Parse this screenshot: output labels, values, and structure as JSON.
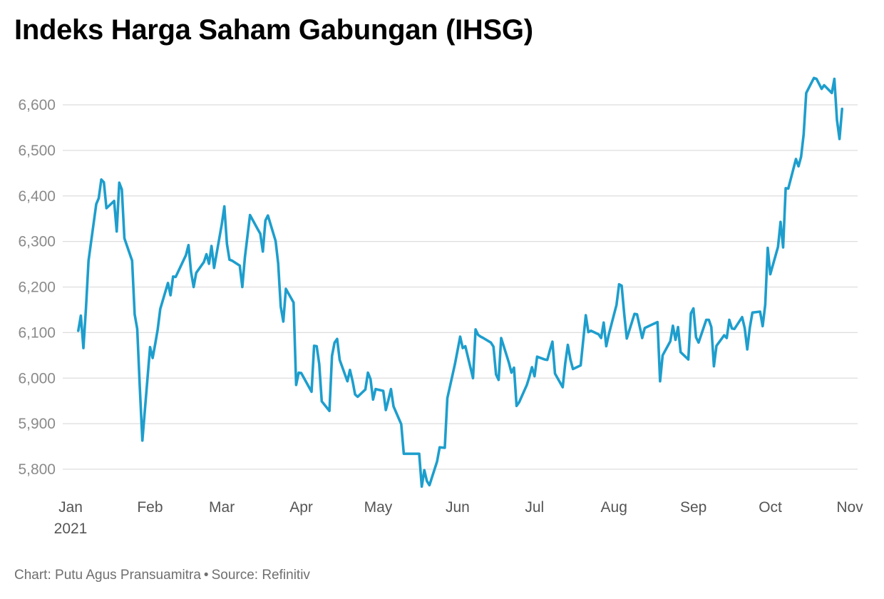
{
  "title": "Indeks Harga Saham Gabungan (IHSG)",
  "footer": {
    "chart_by": "Chart: Putu Agus Pransuamitra",
    "separator": "•",
    "source": "Source: Refinitiv"
  },
  "colors": {
    "line": "#1d9ecd",
    "grid": "#dddddd",
    "tick_text": "#8a8a8a",
    "axis_text": "#555555"
  },
  "chart_data": {
    "type": "line",
    "title": "Indeks Harga Saham Gabungan (IHSG)",
    "xlabel": "",
    "ylabel": "",
    "grid": true,
    "legend": "none",
    "ylim": [
      5750,
      6670
    ],
    "xlim": [
      "2021-01-01",
      "2021-11-01"
    ],
    "y_ticks": [
      5800,
      5900,
      6000,
      6100,
      6200,
      6300,
      6400,
      6500,
      6600
    ],
    "y_tick_labels": [
      "5,800",
      "5,900",
      "6,000",
      "6,100",
      "6,200",
      "6,300",
      "6,400",
      "6,500",
      "6,600"
    ],
    "x_ticks": [
      {
        "date": "2021-01-01",
        "label": "Jan",
        "sublabel": "2021"
      },
      {
        "date": "2021-02-01",
        "label": "Feb"
      },
      {
        "date": "2021-03-01",
        "label": "Mar"
      },
      {
        "date": "2021-04-01",
        "label": "Apr"
      },
      {
        "date": "2021-05-01",
        "label": "May"
      },
      {
        "date": "2021-06-01",
        "label": "Jun"
      },
      {
        "date": "2021-07-01",
        "label": "Jul"
      },
      {
        "date": "2021-08-01",
        "label": "Aug"
      },
      {
        "date": "2021-09-01",
        "label": "Sep"
      },
      {
        "date": "2021-10-01",
        "label": "Oct"
      },
      {
        "date": "2021-11-01",
        "label": "Nov"
      }
    ],
    "series": [
      {
        "x": [
          "2021-01-04",
          "2021-01-05",
          "2021-01-06",
          "2021-01-07",
          "2021-01-08",
          "2021-01-11",
          "2021-01-12",
          "2021-01-13",
          "2021-01-14",
          "2021-01-15",
          "2021-01-18",
          "2021-01-19",
          "2021-01-20",
          "2021-01-21",
          "2021-01-22",
          "2021-01-25",
          "2021-01-26",
          "2021-01-27",
          "2021-01-28",
          "2021-01-29",
          "2021-02-01",
          "2021-02-02",
          "2021-02-03",
          "2021-02-04",
          "2021-02-05",
          "2021-02-08",
          "2021-02-09",
          "2021-02-10",
          "2021-02-11",
          "2021-02-15",
          "2021-02-16",
          "2021-02-17",
          "2021-02-18",
          "2021-02-19",
          "2021-02-22",
          "2021-02-23",
          "2021-02-24",
          "2021-02-25",
          "2021-02-26",
          "2021-03-01",
          "2021-03-02",
          "2021-03-03",
          "2021-03-04",
          "2021-03-05",
          "2021-03-08",
          "2021-03-09",
          "2021-03-10",
          "2021-03-12",
          "2021-03-15",
          "2021-03-16",
          "2021-03-17",
          "2021-03-18",
          "2021-03-19",
          "2021-03-22",
          "2021-03-23",
          "2021-03-24",
          "2021-03-25",
          "2021-03-26",
          "2021-03-29",
          "2021-03-30",
          "2021-03-31",
          "2021-04-01",
          "2021-04-05",
          "2021-04-06",
          "2021-04-07",
          "2021-04-08",
          "2021-04-09",
          "2021-04-12",
          "2021-04-13",
          "2021-04-14",
          "2021-04-15",
          "2021-04-16",
          "2021-04-19",
          "2021-04-20",
          "2021-04-21",
          "2021-04-22",
          "2021-04-23",
          "2021-04-26",
          "2021-04-27",
          "2021-04-28",
          "2021-04-29",
          "2021-04-30",
          "2021-05-03",
          "2021-05-04",
          "2021-05-05",
          "2021-05-06",
          "2021-05-07",
          "2021-05-10",
          "2021-05-11",
          "2021-05-17",
          "2021-05-18",
          "2021-05-19",
          "2021-05-20",
          "2021-05-21",
          "2021-05-24",
          "2021-05-25",
          "2021-05-27",
          "2021-05-28",
          "2021-05-31",
          "2021-06-02",
          "2021-06-03",
          "2021-06-04",
          "2021-06-07",
          "2021-06-08",
          "2021-06-09",
          "2021-06-10",
          "2021-06-11",
          "2021-06-14",
          "2021-06-15",
          "2021-06-16",
          "2021-06-17",
          "2021-06-18",
          "2021-06-21",
          "2021-06-22",
          "2021-06-23",
          "2021-06-24",
          "2021-06-25",
          "2021-06-28",
          "2021-06-29",
          "2021-06-30",
          "2021-07-01",
          "2021-07-02",
          "2021-07-05",
          "2021-07-06",
          "2021-07-07",
          "2021-07-08",
          "2021-07-09",
          "2021-07-12",
          "2021-07-13",
          "2021-07-14",
          "2021-07-15",
          "2021-07-16",
          "2021-07-19",
          "2021-07-21",
          "2021-07-22",
          "2021-07-23",
          "2021-07-26",
          "2021-07-27",
          "2021-07-28",
          "2021-07-29",
          "2021-07-30",
          "2021-08-02",
          "2021-08-03",
          "2021-08-04",
          "2021-08-05",
          "2021-08-06",
          "2021-08-09",
          "2021-08-10",
          "2021-08-12",
          "2021-08-13",
          "2021-08-16",
          "2021-08-18",
          "2021-08-19",
          "2021-08-20",
          "2021-08-23",
          "2021-08-24",
          "2021-08-25",
          "2021-08-26",
          "2021-08-27",
          "2021-08-30",
          "2021-08-31",
          "2021-09-01",
          "2021-09-02",
          "2021-09-03",
          "2021-09-06",
          "2021-09-07",
          "2021-09-08",
          "2021-09-09",
          "2021-09-10",
          "2021-09-13",
          "2021-09-14",
          "2021-09-15",
          "2021-09-16",
          "2021-09-17",
          "2021-09-20",
          "2021-09-21",
          "2021-09-22",
          "2021-09-23",
          "2021-09-24",
          "2021-09-27",
          "2021-09-28",
          "2021-09-29",
          "2021-09-30",
          "2021-10-01",
          "2021-10-04",
          "2021-10-05",
          "2021-10-06",
          "2021-10-07",
          "2021-10-08",
          "2021-10-11",
          "2021-10-12",
          "2021-10-13",
          "2021-10-14",
          "2021-10-15",
          "2021-10-18",
          "2021-10-19",
          "2021-10-21",
          "2021-10-22",
          "2021-10-25",
          "2021-10-26",
          "2021-10-27",
          "2021-10-28",
          "2021-10-29"
        ],
        "y": [
          6104,
          6137,
          6066,
          6154,
          6258,
          6382,
          6395,
          6436,
          6430,
          6373,
          6389,
          6322,
          6429,
          6414,
          6307,
          6258,
          6140,
          6108,
          5980,
          5863,
          6068,
          6044,
          6074,
          6107,
          6152,
          6209,
          6182,
          6223,
          6222,
          6270,
          6292,
          6233,
          6200,
          6231,
          6255,
          6272,
          6251,
          6290,
          6242,
          6338,
          6377,
          6295,
          6260,
          6258,
          6247,
          6200,
          6265,
          6358,
          6327,
          6317,
          6278,
          6346,
          6357,
          6301,
          6252,
          6157,
          6124,
          6196,
          6166,
          5985,
          6012,
          6011,
          5970,
          6071,
          6070,
          6031,
          5949,
          5928,
          6049,
          6078,
          6086,
          6040,
          5993,
          6018,
          5994,
          5964,
          5959,
          5975,
          6012,
          5998,
          5953,
          5976,
          5972,
          5930,
          5952,
          5976,
          5938,
          5899,
          5834,
          5834,
          5762,
          5798,
          5774,
          5765,
          5817,
          5848,
          5847,
          5956,
          6032,
          6091,
          6066,
          6070,
          6000,
          6107,
          6095,
          6091,
          6088,
          6078,
          6069,
          6008,
          5996,
          6088,
          6034,
          6012,
          6023,
          5939,
          5947,
          5985,
          6003,
          6024,
          6004,
          6047,
          6041,
          6040,
          6061,
          6080,
          6010,
          5980,
          6033,
          6073,
          6041,
          6020,
          6028,
          6138,
          6101,
          6104,
          6096,
          6088,
          6122,
          6070,
          6096,
          6161,
          6206,
          6203,
          6141,
          6087,
          6141,
          6140,
          6088,
          6110,
          6118,
          6123,
          5993,
          6050,
          6081,
          6115,
          6084,
          6112,
          6057,
          6041,
          6142,
          6153,
          6090,
          6078,
          6128,
          6128,
          6112,
          6026,
          6071,
          6094,
          6088,
          6128,
          6109,
          6108,
          6134,
          6110,
          6063,
          6111,
          6144,
          6146,
          6114,
          6161,
          6286,
          6228,
          6288,
          6343,
          6287,
          6417,
          6416,
          6481,
          6465,
          6486,
          6535,
          6626,
          6659,
          6657,
          6635,
          6643,
          6626,
          6657,
          6567,
          6525,
          6591
        ]
      }
    ]
  }
}
